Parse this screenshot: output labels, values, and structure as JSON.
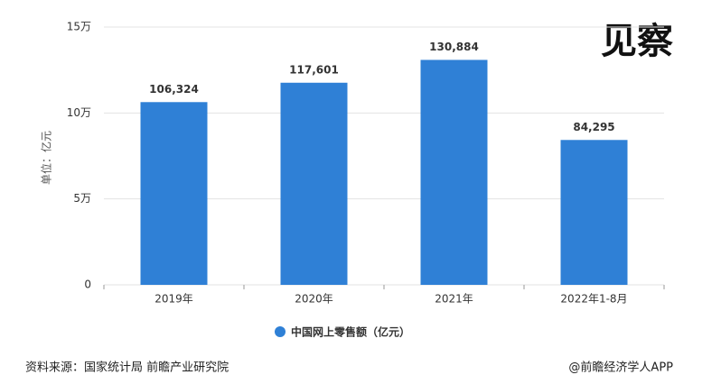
{
  "chart_data": {
    "type": "bar",
    "ylabel": "单位：亿元",
    "categories": [
      "2019年",
      "2020年",
      "2021年",
      "2022年1-8月"
    ],
    "series": [
      {
        "name": "中国网上零售额（亿元）",
        "color": "#2f80d6",
        "values": [
          106324,
          117601,
          130884,
          84295
        ],
        "value_labels": [
          "106,324",
          "117,601",
          "130,884",
          "84,295"
        ]
      }
    ],
    "ylim": [
      0,
      150000
    ],
    "yticks": [
      0,
      {
        "value": 50000,
        "label": "5万"
      },
      {
        "value": 100000,
        "label": "10万"
      },
      {
        "value": 150000,
        "label": "15万"
      }
    ],
    "grid": true
  },
  "header": {
    "brand": "见察"
  },
  "footer": {
    "source": "资料来源：国家统计局 前瞻产业研究院",
    "credit": "@前瞻经济学人APP"
  }
}
